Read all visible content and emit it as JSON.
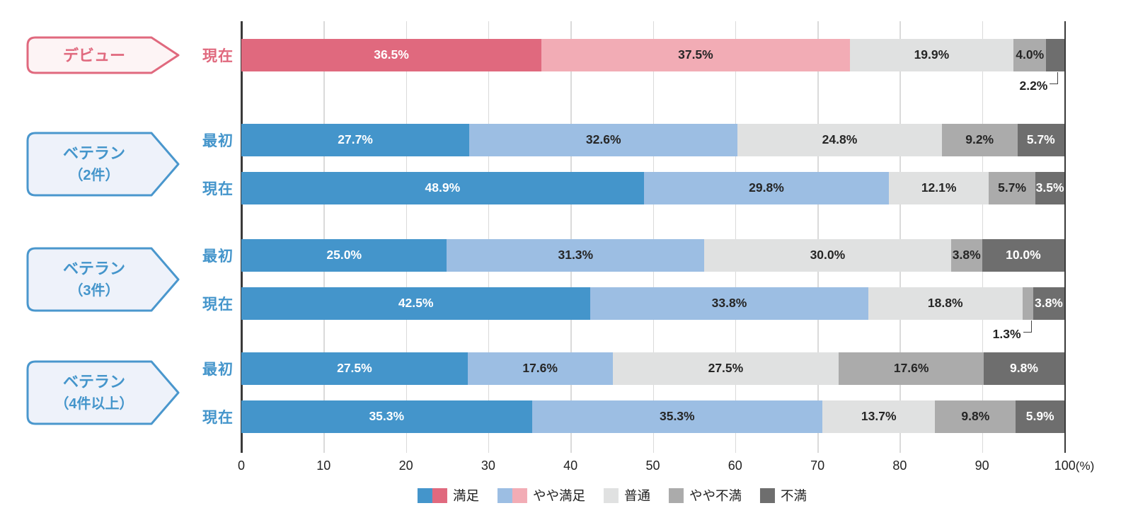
{
  "chart_data": {
    "type": "bar",
    "orientation": "horizontal",
    "stacked": true,
    "unit": "%",
    "title": "",
    "x_axis": {
      "ticks": [
        0,
        10,
        20,
        30,
        40,
        50,
        60,
        70,
        80,
        90,
        100
      ],
      "max_suffix": "(%)",
      "range": [
        0,
        100
      ],
      "grid": true
    },
    "palettes": {
      "blue": [
        "#4495CB",
        "#9CBEE3",
        "#E0E1E1",
        "#ABABAB",
        "#6E6E6E"
      ],
      "pink": [
        "#E0697E",
        "#F2ACB5",
        "#E0E1E1",
        "#ABABAB",
        "#6E6E6E"
      ]
    },
    "segment_label_colors": [
      "#ffffff",
      "#262626",
      "#262626",
      "#262626",
      "#ffffff"
    ],
    "badge_styles": {
      "pink": {
        "border": "#E0697E",
        "fill": "#FDF4F5",
        "text": "#E0697E"
      },
      "blue": {
        "border": "#4A97CD",
        "fill": "#EEF2FA",
        "text": "#4495CB"
      }
    },
    "groups": [
      {
        "name": "デビュー",
        "sub": "",
        "theme": "pink",
        "rows": [
          {
            "label": "現在",
            "values": [
              36.5,
              37.5,
              19.9,
              4.0,
              2.2
            ],
            "callout_segments": [
              4
            ]
          }
        ]
      },
      {
        "name": "ベテラン",
        "sub": "（2件）",
        "theme": "blue",
        "rows": [
          {
            "label": "最初",
            "values": [
              27.7,
              32.6,
              24.8,
              9.2,
              5.7
            ],
            "callout_segments": []
          },
          {
            "label": "現在",
            "values": [
              48.9,
              29.8,
              12.1,
              5.7,
              3.5
            ],
            "callout_segments": []
          }
        ]
      },
      {
        "name": "ベテラン",
        "sub": "（3件）",
        "theme": "blue",
        "rows": [
          {
            "label": "最初",
            "values": [
              25.0,
              31.3,
              30.0,
              3.8,
              10.0
            ],
            "callout_segments": []
          },
          {
            "label": "現在",
            "values": [
              42.5,
              33.8,
              18.8,
              1.3,
              3.8
            ],
            "callout_segments": [
              3
            ]
          }
        ]
      },
      {
        "name": "ベテラン",
        "sub": "（4件以上）",
        "theme": "blue",
        "rows": [
          {
            "label": "最初",
            "values": [
              27.5,
              17.6,
              27.5,
              17.6,
              9.8
            ],
            "callout_segments": []
          },
          {
            "label": "現在",
            "values": [
              35.3,
              35.3,
              13.7,
              9.8,
              5.9
            ],
            "callout_segments": []
          }
        ]
      }
    ],
    "legend": [
      {
        "label": "満足",
        "colors": [
          "#4495CB",
          "#E0697E"
        ]
      },
      {
        "label": "やや満足",
        "colors": [
          "#9CBEE3",
          "#F2ACB5"
        ]
      },
      {
        "label": "普通",
        "colors": [
          "#E0E1E1"
        ]
      },
      {
        "label": "やや不満",
        "colors": [
          "#ABABAB"
        ]
      },
      {
        "label": "不満",
        "colors": [
          "#6E6E6E"
        ]
      }
    ]
  }
}
